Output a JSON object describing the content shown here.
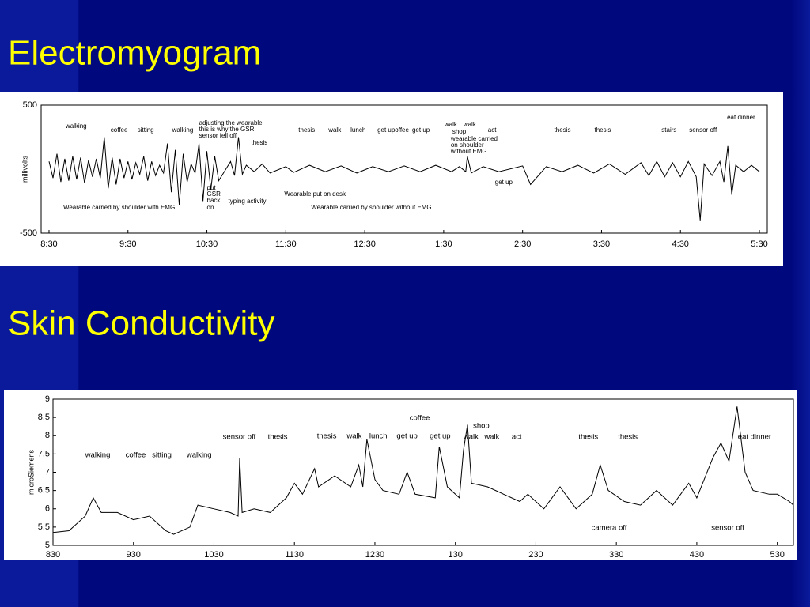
{
  "chart_data": [
    {
      "type": "line",
      "title": "Electromyogram",
      "ylabel": "millivolts",
      "color": "#000000",
      "xlim": [
        8.4,
        17.6
      ],
      "xticks": [
        {
          "value": 8.5,
          "label": "8:30"
        },
        {
          "value": 9.5,
          "label": "9:30"
        },
        {
          "value": 10.5,
          "label": "10:30"
        },
        {
          "value": 11.5,
          "label": "11:30"
        },
        {
          "value": 12.5,
          "label": "12:30"
        },
        {
          "value": 13.5,
          "label": "1:30"
        },
        {
          "value": 14.5,
          "label": "2:30"
        },
        {
          "value": 15.5,
          "label": "3:30"
        },
        {
          "value": 16.5,
          "label": "4:30"
        },
        {
          "value": 17.5,
          "label": "5:30"
        }
      ],
      "ylim": [
        -500,
        500
      ],
      "yticks": [
        -500,
        500
      ],
      "x": [
        8.5,
        8.55,
        8.6,
        8.65,
        8.7,
        8.75,
        8.8,
        8.85,
        8.9,
        8.95,
        9.0,
        9.05,
        9.1,
        9.15,
        9.2,
        9.25,
        9.3,
        9.35,
        9.4,
        9.45,
        9.5,
        9.55,
        9.6,
        9.65,
        9.7,
        9.75,
        9.8,
        9.85,
        9.9,
        9.95,
        10.0,
        10.05,
        10.1,
        10.15,
        10.2,
        10.25,
        10.3,
        10.35,
        10.4,
        10.45,
        10.5,
        10.55,
        10.6,
        10.65,
        10.8,
        10.85,
        10.9,
        10.95,
        11.0,
        11.1,
        11.2,
        11.3,
        11.5,
        11.6,
        11.8,
        12.0,
        12.2,
        12.4,
        12.6,
        12.8,
        13.0,
        13.2,
        13.4,
        13.6,
        13.7,
        13.78,
        13.8,
        13.85,
        14.0,
        14.2,
        14.5,
        14.6,
        14.8,
        15.0,
        15.2,
        15.4,
        15.6,
        15.8,
        16.0,
        16.1,
        16.2,
        16.3,
        16.4,
        16.5,
        16.6,
        16.7,
        16.75,
        16.8,
        16.9,
        17.0,
        17.05,
        17.1,
        17.15,
        17.2,
        17.3,
        17.4,
        17.5
      ],
      "values": [
        60,
        -70,
        120,
        -100,
        80,
        -90,
        100,
        -80,
        90,
        -110,
        70,
        -60,
        80,
        -70,
        250,
        -150,
        90,
        -120,
        80,
        -70,
        60,
        -80,
        50,
        -40,
        100,
        -90,
        60,
        -50,
        30,
        -30,
        200,
        -180,
        150,
        -280,
        120,
        -100,
        40,
        -30,
        200,
        -250,
        140,
        -160,
        100,
        -90,
        60,
        -50,
        250,
        -40,
        30,
        -20,
        40,
        -30,
        20,
        -25,
        30,
        -20,
        25,
        -30,
        20,
        -20,
        25,
        -20,
        30,
        -20,
        20,
        -20,
        100,
        -30,
        20,
        -20,
        25,
        -120,
        20,
        -20,
        30,
        -30,
        40,
        -40,
        50,
        -50,
        60,
        -60,
        50,
        -60,
        60,
        -60,
        -400,
        40,
        -50,
        60,
        -100,
        180,
        -200,
        30,
        -20,
        30,
        -20
      ],
      "annotations": [
        {
          "text": "walking",
          "x": 8.71,
          "y": 333
        },
        {
          "text": "coffee",
          "x": 9.28,
          "y": 302
        },
        {
          "text": "sitting",
          "x": 9.62,
          "y": 302
        },
        {
          "text": "walking",
          "x": 10.06,
          "y": 302
        },
        {
          "text": "adjusting the wearable",
          "x": 10.4,
          "y": 358
        },
        {
          "text": "this is why the GSR",
          "x": 10.4,
          "y": 309
        },
        {
          "text": "sensor fell off",
          "x": 10.4,
          "y": 259
        },
        {
          "text": "thesis",
          "x": 11.06,
          "y": 204
        },
        {
          "text": "thesis",
          "x": 11.66,
          "y": 302
        },
        {
          "text": "walk",
          "x": 12.04,
          "y": 302
        },
        {
          "text": "lunch",
          "x": 12.32,
          "y": 302
        },
        {
          "text": "get upoffee",
          "x": 12.66,
          "y": 302
        },
        {
          "text": "get up",
          "x": 13.1,
          "y": 302
        },
        {
          "text": "walk",
          "x": 13.51,
          "y": 346
        },
        {
          "text": "walk",
          "x": 13.75,
          "y": 346
        },
        {
          "text": "shop",
          "x": 13.61,
          "y": 290
        },
        {
          "text": "act",
          "x": 14.06,
          "y": 302
        },
        {
          "text": "wearable carried",
          "x": 13.59,
          "y": 235
        },
        {
          "text": "on shoulder",
          "x": 13.59,
          "y": 185
        },
        {
          "text": "without EMG",
          "x": 13.59,
          "y": 136
        },
        {
          "text": "get up",
          "x": 14.15,
          "y": -105
        },
        {
          "text": "thesis",
          "x": 14.9,
          "y": 302
        },
        {
          "text": "thesis",
          "x": 15.41,
          "y": 302
        },
        {
          "text": "stairs",
          "x": 16.26,
          "y": 302
        },
        {
          "text": "sensor off",
          "x": 16.61,
          "y": 302
        },
        {
          "text": "eat dinner",
          "x": 17.09,
          "y": 401
        },
        {
          "text": "put",
          "x": 10.5,
          "y": -148
        },
        {
          "text": "GSR",
          "x": 10.5,
          "y": -197
        },
        {
          "text": "back",
          "x": 10.5,
          "y": -247
        },
        {
          "text": "on",
          "x": 10.5,
          "y": -302
        },
        {
          "text": "typing activity",
          "x": 10.77,
          "y": -253
        },
        {
          "text": "Wearable put on desk",
          "x": 11.48,
          "y": -197
        },
        {
          "text": "Wearable carried by shoulder with EMG",
          "x": 8.68,
          "y": -302
        },
        {
          "text": "Wearable carried by shoulder without EMG",
          "x": 11.82,
          "y": -302
        }
      ]
    },
    {
      "type": "line",
      "title": "Skin Conductivity",
      "ylabel": "microSiemens",
      "color": "#000000",
      "xlim": [
        8.5,
        17.7
      ],
      "xticks": [
        {
          "value": 8.5,
          "label": "830"
        },
        {
          "value": 9.5,
          "label": "930"
        },
        {
          "value": 10.5,
          "label": "1030"
        },
        {
          "value": 11.5,
          "label": "1130"
        },
        {
          "value": 12.5,
          "label": "1230"
        },
        {
          "value": 13.5,
          "label": "130"
        },
        {
          "value": 14.5,
          "label": "230"
        },
        {
          "value": 15.5,
          "label": "330"
        },
        {
          "value": 16.5,
          "label": "430"
        },
        {
          "value": 17.5,
          "label": "530"
        }
      ],
      "ylim": [
        5,
        9
      ],
      "yticks": [
        5,
        5.5,
        6,
        6.5,
        7,
        7.5,
        8,
        8.5,
        9
      ],
      "x": [
        8.5,
        8.7,
        8.9,
        9.0,
        9.1,
        9.3,
        9.5,
        9.7,
        9.9,
        10.0,
        10.2,
        10.3,
        10.5,
        10.7,
        10.8,
        10.82,
        10.85,
        11.0,
        11.2,
        11.4,
        11.5,
        11.6,
        11.75,
        11.8,
        12.0,
        12.2,
        12.3,
        12.35,
        12.4,
        12.5,
        12.6,
        12.8,
        12.9,
        13.0,
        13.25,
        13.3,
        13.4,
        13.55,
        13.6,
        13.65,
        13.7,
        13.9,
        14.1,
        14.3,
        14.4,
        14.6,
        14.8,
        15.0,
        15.2,
        15.3,
        15.4,
        15.6,
        15.8,
        16.0,
        16.2,
        16.4,
        16.5,
        16.7,
        16.8,
        16.9,
        17.0,
        17.1,
        17.2,
        17.4,
        17.5,
        17.65,
        17.7
      ],
      "values": [
        5.35,
        5.4,
        5.8,
        6.3,
        5.9,
        5.9,
        5.7,
        5.8,
        5.4,
        5.3,
        5.5,
        6.1,
        6.0,
        5.9,
        5.8,
        7.4,
        5.9,
        6.0,
        5.9,
        6.3,
        6.7,
        6.4,
        7.1,
        6.6,
        6.9,
        6.6,
        7.2,
        6.6,
        7.9,
        6.8,
        6.5,
        6.4,
        7.0,
        6.4,
        6.3,
        7.7,
        6.6,
        6.3,
        7.6,
        8.3,
        6.7,
        6.6,
        6.4,
        6.2,
        6.4,
        6.0,
        6.6,
        6.0,
        6.4,
        7.2,
        6.5,
        6.2,
        6.1,
        6.5,
        6.1,
        6.7,
        6.3,
        7.4,
        7.8,
        7.3,
        8.8,
        7.0,
        6.5,
        6.4,
        6.4,
        6.2,
        6.1
      ],
      "annotations": [
        {
          "text": "walking",
          "x": 8.9,
          "y": 7.46
        },
        {
          "text": "coffee",
          "x": 9.4,
          "y": 7.46
        },
        {
          "text": "sitting",
          "x": 9.73,
          "y": 7.46
        },
        {
          "text": "walking",
          "x": 10.16,
          "y": 7.46
        },
        {
          "text": "sensor off",
          "x": 10.61,
          "y": 7.96
        },
        {
          "text": "thesis",
          "x": 11.17,
          "y": 7.96
        },
        {
          "text": "thesis",
          "x": 11.78,
          "y": 7.98
        },
        {
          "text": "walk",
          "x": 12.15,
          "y": 7.98
        },
        {
          "text": "lunch",
          "x": 12.43,
          "y": 7.98
        },
        {
          "text": "get up",
          "x": 12.77,
          "y": 7.98
        },
        {
          "text": "get up",
          "x": 13.18,
          "y": 7.98
        },
        {
          "text": "coffee",
          "x": 12.93,
          "y": 8.48
        },
        {
          "text": "shop",
          "x": 13.72,
          "y": 8.26
        },
        {
          "text": "walk",
          "x": 13.6,
          "y": 7.96
        },
        {
          "text": "walk",
          "x": 13.86,
          "y": 7.96
        },
        {
          "text": "act",
          "x": 14.2,
          "y": 7.96
        },
        {
          "text": "thesis",
          "x": 15.03,
          "y": 7.96
        },
        {
          "text": "thesis",
          "x": 15.52,
          "y": 7.96
        },
        {
          "text": "eat dinner",
          "x": 17.01,
          "y": 7.96
        },
        {
          "text": "camera off",
          "x": 15.19,
          "y": 5.48
        },
        {
          "text": "sensor off",
          "x": 16.68,
          "y": 5.48
        }
      ]
    }
  ]
}
